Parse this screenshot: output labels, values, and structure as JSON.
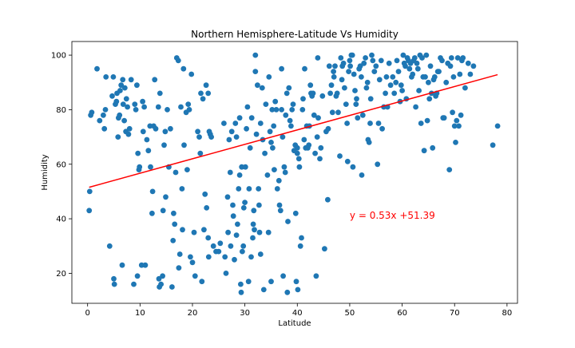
{
  "chart_data": {
    "type": "scatter",
    "title": "Northern Hemisphere-Latitude Vs Humidity",
    "xlabel": "Latitude",
    "ylabel": "Humidity",
    "xlim": [
      -3,
      82
    ],
    "ylim": [
      9,
      105
    ],
    "xticks": [
      0,
      10,
      20,
      30,
      40,
      50,
      60,
      70,
      80
    ],
    "yticks": [
      20,
      40,
      60,
      80,
      100
    ],
    "grid": false,
    "colors": {
      "points": "#1f77b4",
      "regression": "#ff0000",
      "annotation": "#ff0000"
    },
    "regression": {
      "slope": 0.53,
      "intercept": 51.39,
      "x_range": [
        0.3,
        78.2
      ]
    },
    "annotation": {
      "text": "y = 0.53x +51.39",
      "x": 50,
      "y": 40
    },
    "points": [
      [
        0.3,
        43
      ],
      [
        0.4,
        50
      ],
      [
        0.6,
        78
      ],
      [
        0.8,
        79
      ],
      [
        1.8,
        95
      ],
      [
        2.3,
        76
      ],
      [
        3,
        78
      ],
      [
        3.2,
        73
      ],
      [
        3.4,
        80
      ],
      [
        3.5,
        92
      ],
      [
        4.2,
        30
      ],
      [
        4.7,
        85
      ],
      [
        4.9,
        92
      ],
      [
        5,
        18
      ],
      [
        5.1,
        16
      ],
      [
        5.3,
        82
      ],
      [
        5.5,
        83
      ],
      [
        5.6,
        86
      ],
      [
        5.8,
        70
      ],
      [
        5.9,
        77
      ],
      [
        6.1,
        78
      ],
      [
        6.2,
        87
      ],
      [
        6.4,
        89
      ],
      [
        6.6,
        23
      ],
      [
        6.7,
        91
      ],
      [
        6.8,
        82
      ],
      [
        7,
        76
      ],
      [
        7.1,
        88
      ],
      [
        7.3,
        72
      ],
      [
        7.4,
        84
      ],
      [
        7.6,
        81
      ],
      [
        7.8,
        71
      ],
      [
        8,
        73
      ],
      [
        8.3,
        91
      ],
      [
        8.8,
        16
      ],
      [
        9,
        82
      ],
      [
        9.2,
        80
      ],
      [
        9.4,
        89
      ],
      [
        9.5,
        19
      ],
      [
        9.6,
        64
      ],
      [
        9.8,
        58
      ],
      [
        9.9,
        59
      ],
      [
        10.3,
        23
      ],
      [
        10.5,
        83
      ],
      [
        10.6,
        72
      ],
      [
        10.8,
        81
      ],
      [
        11,
        23
      ],
      [
        11.3,
        69
      ],
      [
        11.6,
        65
      ],
      [
        11.9,
        74
      ],
      [
        12,
        59
      ],
      [
        12.3,
        42
      ],
      [
        12.4,
        50
      ],
      [
        12.6,
        74
      ],
      [
        12.8,
        91
      ],
      [
        13,
        73
      ],
      [
        13.5,
        81
      ],
      [
        13.6,
        18
      ],
      [
        13.7,
        15
      ],
      [
        13.8,
        86
      ],
      [
        14,
        16
      ],
      [
        14.3,
        19
      ],
      [
        14.4,
        43
      ],
      [
        14.6,
        67
      ],
      [
        14.8,
        72
      ],
      [
        14.9,
        48
      ],
      [
        15.2,
        80
      ],
      [
        15.5,
        59
      ],
      [
        15.8,
        73
      ],
      [
        16.1,
        15
      ],
      [
        16.3,
        32
      ],
      [
        16.4,
        42
      ],
      [
        16.6,
        38
      ],
      [
        16.8,
        57
      ],
      [
        17,
        99
      ],
      [
        17.3,
        98
      ],
      [
        17.4,
        22
      ],
      [
        17.6,
        27
      ],
      [
        17.8,
        81
      ],
      [
        18,
        51
      ],
      [
        18.1,
        36
      ],
      [
        18.3,
        95
      ],
      [
        18.4,
        67
      ],
      [
        18.8,
        79
      ],
      [
        19,
        58
      ],
      [
        19.2,
        82
      ],
      [
        19.4,
        80
      ],
      [
        19.6,
        26
      ],
      [
        19.8,
        93
      ],
      [
        20,
        24
      ],
      [
        20.3,
        35
      ],
      [
        20.5,
        19
      ],
      [
        21,
        72
      ],
      [
        21.3,
        70
      ],
      [
        21.5,
        64
      ],
      [
        21.6,
        86
      ],
      [
        21.8,
        17
      ],
      [
        22,
        84
      ],
      [
        22.2,
        36
      ],
      [
        22.4,
        49
      ],
      [
        22.6,
        89
      ],
      [
        22.7,
        44
      ],
      [
        23,
        86
      ],
      [
        23,
        33
      ],
      [
        23.1,
        26
      ],
      [
        23.2,
        72
      ],
      [
        23.4,
        71
      ],
      [
        23.6,
        70
      ],
      [
        24,
        30
      ],
      [
        24.5,
        28
      ],
      [
        25,
        28
      ],
      [
        25.3,
        31
      ],
      [
        26,
        75
      ],
      [
        26.2,
        26
      ],
      [
        26.4,
        20
      ],
      [
        26.7,
        48
      ],
      [
        26.8,
        35
      ],
      [
        27,
        69
      ],
      [
        27.2,
        57
      ],
      [
        27.3,
        30
      ],
      [
        27.5,
        72
      ],
      [
        27.7,
        45
      ],
      [
        27.8,
        41
      ],
      [
        28,
        25
      ],
      [
        28.2,
        75
      ],
      [
        28.4,
        70
      ],
      [
        28.4,
        34
      ],
      [
        28.6,
        38
      ],
      [
        28.8,
        51
      ],
      [
        29,
        77
      ],
      [
        29,
        56
      ],
      [
        29.2,
        16
      ],
      [
        29.3,
        13
      ],
      [
        29.4,
        59
      ],
      [
        29.5,
        28
      ],
      [
        29.7,
        30
      ],
      [
        29.8,
        44
      ],
      [
        30,
        46
      ],
      [
        30.1,
        59
      ],
      [
        30.3,
        73
      ],
      [
        30.5,
        81
      ],
      [
        30.7,
        17
      ],
      [
        30.8,
        51
      ],
      [
        31,
        66
      ],
      [
        31.2,
        26
      ],
      [
        31.3,
        77
      ],
      [
        31.5,
        33
      ],
      [
        31.6,
        38
      ],
      [
        31.7,
        43
      ],
      [
        31.8,
        36
      ],
      [
        32,
        94
      ],
      [
        32,
        100
      ],
      [
        32.2,
        71
      ],
      [
        32.4,
        89
      ],
      [
        32.6,
        51
      ],
      [
        32.7,
        45
      ],
      [
        32.8,
        35
      ],
      [
        33,
        75
      ],
      [
        33,
        27
      ],
      [
        33.3,
        88
      ],
      [
        33.4,
        69
      ],
      [
        33.6,
        14
      ],
      [
        33.8,
        64
      ],
      [
        34,
        82
      ],
      [
        34.3,
        56
      ],
      [
        34.5,
        35
      ],
      [
        34.6,
        92
      ],
      [
        34.8,
        72
      ],
      [
        35,
        17
      ],
      [
        35,
        68
      ],
      [
        35.2,
        80
      ],
      [
        35.3,
        66
      ],
      [
        35.5,
        74
      ],
      [
        35.6,
        58
      ],
      [
        35.8,
        83
      ],
      [
        36,
        80
      ],
      [
        36.2,
        51
      ],
      [
        36.5,
        54
      ],
      [
        36.6,
        45
      ],
      [
        36.8,
        43
      ],
      [
        37,
        95
      ],
      [
        37,
        80
      ],
      [
        37.2,
        70
      ],
      [
        37.3,
        19
      ],
      [
        37.5,
        59
      ],
      [
        37.7,
        57
      ],
      [
        37.8,
        78
      ],
      [
        38,
        86
      ],
      [
        38.1,
        13
      ],
      [
        38.2,
        39
      ],
      [
        38.4,
        88
      ],
      [
        38.6,
        76
      ],
      [
        38.8,
        74
      ],
      [
        39,
        80
      ],
      [
        39.2,
        82
      ],
      [
        39.4,
        65
      ],
      [
        39.6,
        67
      ],
      [
        39.7,
        42
      ],
      [
        39.8,
        17
      ],
      [
        40,
        66
      ],
      [
        40,
        64
      ],
      [
        40.1,
        14
      ],
      [
        40.3,
        62
      ],
      [
        40.4,
        59
      ],
      [
        40.6,
        30
      ],
      [
        40.8,
        33
      ],
      [
        41,
        80
      ],
      [
        41.1,
        84
      ],
      [
        41.3,
        69
      ],
      [
        41.4,
        95
      ],
      [
        41.6,
        66
      ],
      [
        41.8,
        74
      ],
      [
        42,
        66
      ],
      [
        42.2,
        67
      ],
      [
        42.3,
        74
      ],
      [
        42.5,
        89
      ],
      [
        42.6,
        86
      ],
      [
        42.8,
        85
      ],
      [
        43,
        86
      ],
      [
        43.2,
        78
      ],
      [
        43.4,
        64
      ],
      [
        43.6,
        19
      ],
      [
        43.8,
        70
      ],
      [
        43.9,
        99
      ],
      [
        44,
        77
      ],
      [
        44.3,
        62
      ],
      [
        44.5,
        66
      ],
      [
        44.8,
        85
      ],
      [
        45.2,
        29
      ],
      [
        45.5,
        72
      ],
      [
        45.8,
        47
      ],
      [
        45.9,
        73
      ],
      [
        46.1,
        96
      ],
      [
        46.3,
        86
      ],
      [
        46.5,
        89
      ],
      [
        46.7,
        79
      ],
      [
        46.9,
        94
      ],
      [
        47,
        92
      ],
      [
        47.2,
        96
      ],
      [
        47.4,
        85
      ],
      [
        47.6,
        86
      ],
      [
        47.8,
        79
      ],
      [
        48.1,
        63
      ],
      [
        48.3,
        99
      ],
      [
        48.5,
        91
      ],
      [
        48.6,
        96
      ],
      [
        48.8,
        97
      ],
      [
        49,
        88
      ],
      [
        49.3,
        82
      ],
      [
        49.5,
        75
      ],
      [
        49.6,
        61
      ],
      [
        49.8,
        94
      ],
      [
        50,
        98
      ],
      [
        50.1,
        96
      ],
      [
        50.3,
        100
      ],
      [
        50.5,
        100
      ],
      [
        50.6,
        59
      ],
      [
        50.8,
        93
      ],
      [
        51,
        87
      ],
      [
        51.2,
        82
      ],
      [
        51.3,
        84
      ],
      [
        51.5,
        77
      ],
      [
        51.8,
        95
      ],
      [
        52,
        96
      ],
      [
        52.2,
        92
      ],
      [
        52.3,
        56
      ],
      [
        52.5,
        78
      ],
      [
        52.7,
        97
      ],
      [
        53,
        99
      ],
      [
        53.2,
        88
      ],
      [
        53.4,
        90
      ],
      [
        53.5,
        69
      ],
      [
        53.7,
        68
      ],
      [
        53.9,
        75
      ],
      [
        54,
        84
      ],
      [
        54.2,
        100
      ],
      [
        54.4,
        98
      ],
      [
        54.7,
        94
      ],
      [
        55,
        96
      ],
      [
        55.3,
        60
      ],
      [
        55.5,
        75
      ],
      [
        55.7,
        91
      ],
      [
        56,
        98
      ],
      [
        56.2,
        73
      ],
      [
        56.5,
        81
      ],
      [
        56.8,
        86
      ],
      [
        57,
        92
      ],
      [
        57.2,
        81
      ],
      [
        57.5,
        97
      ],
      [
        57.8,
        89
      ],
      [
        58.2,
        92
      ],
      [
        58.5,
        86
      ],
      [
        58.8,
        90
      ],
      [
        59,
        98
      ],
      [
        59.3,
        94
      ],
      [
        59.6,
        83
      ],
      [
        59.8,
        89
      ],
      [
        60,
        87
      ],
      [
        60.2,
        100
      ],
      [
        60.4,
        97
      ],
      [
        60.6,
        96
      ],
      [
        60.8,
        84
      ],
      [
        61,
        99
      ],
      [
        61.2,
        98
      ],
      [
        61.4,
        95
      ],
      [
        61.6,
        97
      ],
      [
        61.8,
        92
      ],
      [
        62,
        93
      ],
      [
        62.2,
        98
      ],
      [
        62.4,
        99
      ],
      [
        62.6,
        81
      ],
      [
        62.8,
        97
      ],
      [
        63,
        95
      ],
      [
        63.2,
        87
      ],
      [
        63.4,
        100
      ],
      [
        63.6,
        75
      ],
      [
        63.8,
        99
      ],
      [
        64,
        92
      ],
      [
        64.2,
        65
      ],
      [
        64.4,
        92
      ],
      [
        64.6,
        100
      ],
      [
        64.8,
        76
      ],
      [
        65,
        90
      ],
      [
        65.2,
        84
      ],
      [
        65.4,
        96
      ],
      [
        65.6,
        86
      ],
      [
        65.8,
        66
      ],
      [
        66,
        91
      ],
      [
        66.2,
        92
      ],
      [
        66.4,
        85
      ],
      [
        66.6,
        86
      ],
      [
        66.8,
        94
      ],
      [
        67,
        94
      ],
      [
        67.3,
        99
      ],
      [
        67.6,
        98
      ],
      [
        67.8,
        77
      ],
      [
        68,
        77
      ],
      [
        68.4,
        90
      ],
      [
        68.7,
        97
      ],
      [
        69,
        58
      ],
      [
        69.2,
        96
      ],
      [
        69.4,
        99
      ],
      [
        69.6,
        79
      ],
      [
        69.8,
        92
      ],
      [
        70,
        74
      ],
      [
        70.2,
        68
      ],
      [
        70.4,
        76
      ],
      [
        70.6,
        99
      ],
      [
        70.8,
        74
      ],
      [
        71,
        93
      ],
      [
        71.2,
        78
      ],
      [
        71.4,
        98
      ],
      [
        71.6,
        99
      ],
      [
        72,
        88
      ],
      [
        72.6,
        97
      ],
      [
        73,
        93
      ],
      [
        73.6,
        96
      ],
      [
        77.3,
        67
      ],
      [
        78.2,
        74
      ]
    ]
  }
}
